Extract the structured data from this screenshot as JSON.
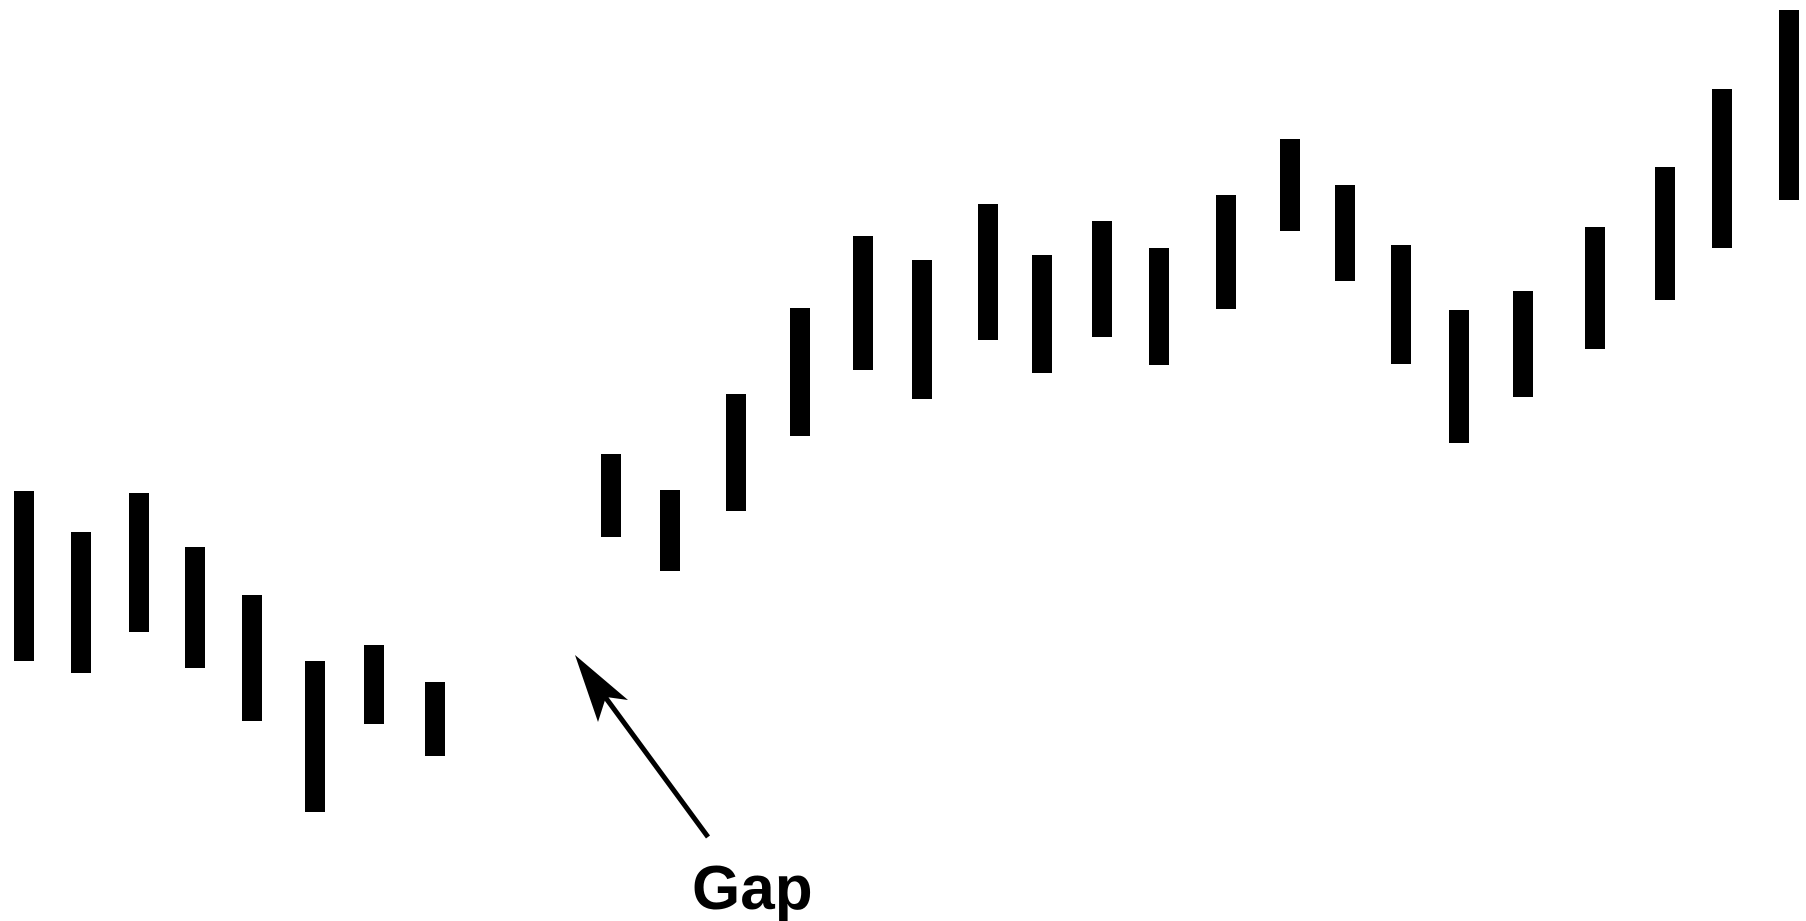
{
  "chart_data": {
    "type": "bar",
    "title": "",
    "xlabel": "",
    "ylabel": "",
    "grid": false,
    "legend": "none",
    "bar_color": "#000000",
    "ylim": [
      0,
      921
    ],
    "series": [
      {
        "values": [
          {
            "high": 430,
            "low": 260
          },
          {
            "high": 389,
            "low": 248
          },
          {
            "high": 428,
            "low": 289
          },
          {
            "high": 374,
            "low": 253
          },
          {
            "high": 326,
            "low": 200
          },
          {
            "high": 260,
            "low": 109
          },
          {
            "high": 276,
            "low": 197
          },
          {
            "high": 239,
            "low": 165
          },
          {
            "high": 467,
            "low": 384
          },
          {
            "high": 431,
            "low": 350
          },
          {
            "high": 527,
            "low": 410
          },
          {
            "high": 613,
            "low": 485
          },
          {
            "high": 685,
            "low": 551
          },
          {
            "high": 661,
            "low": 522
          },
          {
            "high": 717,
            "low": 581
          },
          {
            "high": 666,
            "low": 548
          },
          {
            "high": 700,
            "low": 584
          },
          {
            "high": 673,
            "low": 556
          },
          {
            "high": 726,
            "low": 612
          },
          {
            "high": 782,
            "low": 690
          },
          {
            "high": 736,
            "low": 640
          },
          {
            "high": 676,
            "low": 557
          },
          {
            "high": 611,
            "low": 478
          },
          {
            "high": 630,
            "low": 524
          },
          {
            "high": 694,
            "low": 572
          },
          {
            "high": 754,
            "low": 621
          },
          {
            "high": 832,
            "low": 673
          },
          {
            "high": 911,
            "low": 721
          }
        ]
      }
    ],
    "annotations": [
      {
        "text": "Gap",
        "target_index_between": [
          7,
          8
        ]
      }
    ]
  }
}
